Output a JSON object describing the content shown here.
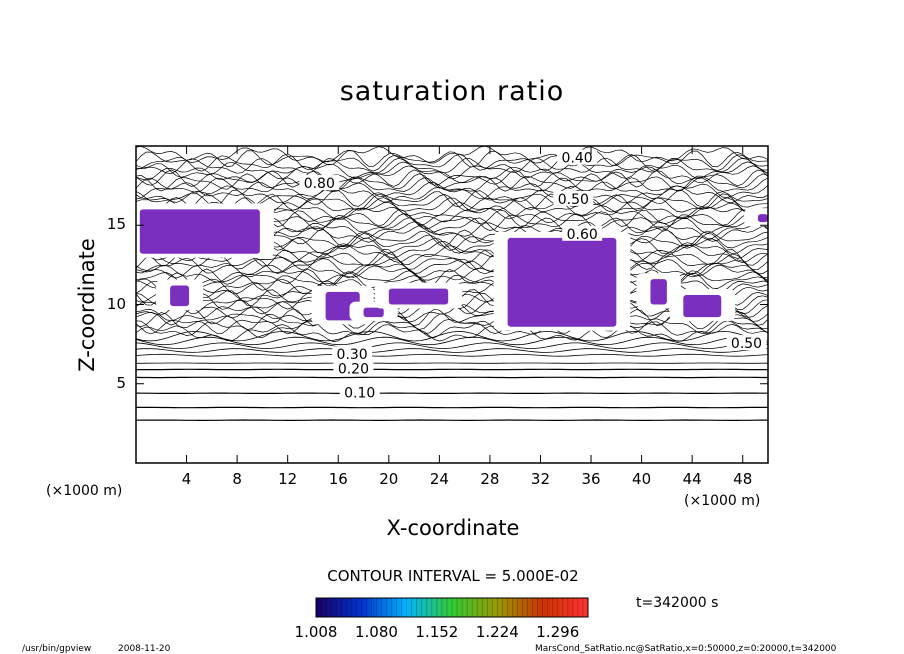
{
  "chart_data": {
    "type": "heatmap",
    "title": "saturation ratio",
    "xlabel": "X-coordinate",
    "ylabel": "Z-coordinate",
    "x_unit_left": "(×1000 m)",
    "x_unit_right": "(×1000 m)",
    "xlim": [
      0,
      50
    ],
    "ylim": [
      0,
      20
    ],
    "x_ticks": [
      "4",
      "8",
      "12",
      "16",
      "20",
      "24",
      "28",
      "32",
      "36",
      "40",
      "44",
      "48"
    ],
    "x_tick_values": [
      4,
      8,
      12,
      16,
      20,
      24,
      28,
      32,
      36,
      40,
      44,
      48
    ],
    "y_ticks": [
      "5",
      "10",
      "15"
    ],
    "y_tick_values": [
      5,
      10,
      15
    ],
    "contour_labels": [
      {
        "text": "0.10",
        "x": 17.7,
        "z": 4.4
      },
      {
        "text": "0.20",
        "x": 17.2,
        "z": 5.9
      },
      {
        "text": "0.30",
        "x": 17.1,
        "z": 6.8
      },
      {
        "text": "0.40",
        "x": 34.9,
        "z": 19.2
      },
      {
        "text": "0.50",
        "x": 34.6,
        "z": 16.6
      },
      {
        "text": "0.60",
        "x": 35.3,
        "z": 14.4
      },
      {
        "text": "0.80",
        "x": 14.5,
        "z": 17.6
      },
      {
        "text": "0.50",
        "x": 48.3,
        "z": 7.5
      }
    ],
    "contour_interval_text": "CONTOUR INTERVAL = 5.000E-02",
    "time_text": "t=342000 s",
    "colorbar": {
      "min": 1.008,
      "max": 1.332,
      "tick_labels": [
        "1.008",
        "1.080",
        "1.152",
        "1.224",
        "1.296"
      ],
      "tick_values": [
        1.008,
        1.08,
        1.152,
        1.224,
        1.296
      ],
      "colors": [
        "#1a0066",
        "#0033cc",
        "#00b4ff",
        "#33cc33",
        "#999900",
        "#cc3300",
        "#ff3333"
      ]
    },
    "supersaturation_fill_color": "#7b2fbf",
    "supersaturation_regions": [
      {
        "x": [
          0.3,
          9.8
        ],
        "z": [
          13.2,
          16.0
        ]
      },
      {
        "x": [
          2.7,
          4.2
        ],
        "z": [
          9.9,
          11.2
        ]
      },
      {
        "x": [
          15.0,
          17.7
        ],
        "z": [
          9.0,
          10.8
        ]
      },
      {
        "x": [
          18.0,
          19.6
        ],
        "z": [
          9.2,
          9.8
        ]
      },
      {
        "x": [
          20.0,
          24.7
        ],
        "z": [
          10.0,
          11.0
        ]
      },
      {
        "x": [
          29.4,
          38.0
        ],
        "z": [
          8.6,
          14.2
        ]
      },
      {
        "x": [
          40.7,
          42.0
        ],
        "z": [
          10.0,
          11.6
        ]
      },
      {
        "x": [
          43.3,
          46.3
        ],
        "z": [
          9.2,
          10.6
        ]
      },
      {
        "x": [
          49.2,
          50.0
        ],
        "z": [
          15.2,
          15.7
        ]
      }
    ]
  },
  "footer": {
    "program": "/usr/bin/gpview",
    "date": "2008-11-20",
    "source": "MarsCond_SatRatio.nc@SatRatio,x=0:50000,z=0:20000,t=342000"
  }
}
